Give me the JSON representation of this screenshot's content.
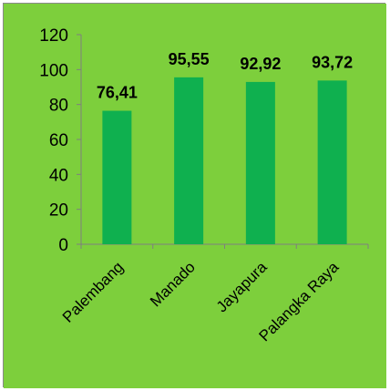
{
  "chart_data": {
    "type": "bar",
    "categories": [
      "Palembang",
      "Manado",
      "Jayapura",
      "Palangka Raya"
    ],
    "values": [
      76.41,
      95.55,
      92.92,
      93.72
    ],
    "data_labels": [
      "76,41",
      "95,55",
      "92,92",
      "93,72"
    ],
    "title": "",
    "xlabel": "",
    "ylabel": "",
    "ylim": [
      0,
      120
    ],
    "yticks": [
      0,
      20,
      40,
      60,
      80,
      100,
      120
    ],
    "grid": false,
    "legend": "none"
  },
  "colors": {
    "background": "#7dcf3c",
    "bar": "#0fb04f",
    "axis": "#7f7f7f",
    "text": "#000000"
  }
}
